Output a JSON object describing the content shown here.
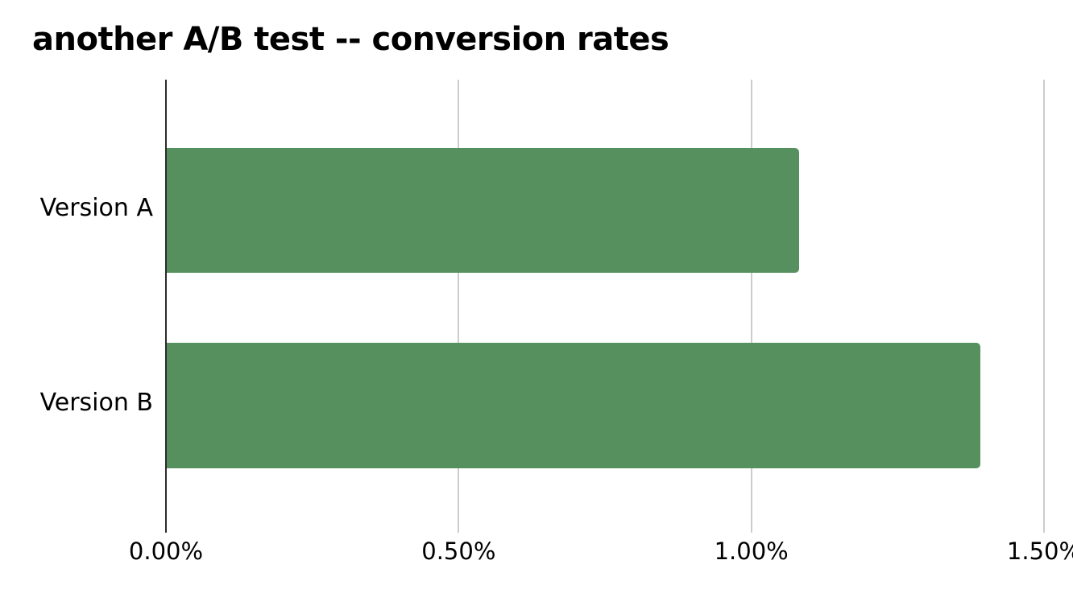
{
  "page": {
    "background_color": "#ffffff",
    "text_color": "#000000"
  },
  "chart_data": {
    "type": "bar",
    "orientation": "horizontal",
    "title": "another A/B test -- conversion rates",
    "categories": [
      "Version A",
      "Version B"
    ],
    "values": [
      1.08,
      1.39
    ],
    "value_unit": "%",
    "xlabel": "",
    "ylabel": "",
    "xlim": [
      0,
      1.5
    ],
    "x_tick_labels": [
      "0.00%",
      "0.50%",
      "1.00%",
      "1.50%"
    ],
    "x_tick_values": [
      0,
      0.5,
      1.0,
      1.5
    ],
    "grid": true,
    "legend_position": "none",
    "bar_color": "#57905f",
    "axis_line_color": "#2b2b2b",
    "gridline_color": "#cccccc"
  }
}
